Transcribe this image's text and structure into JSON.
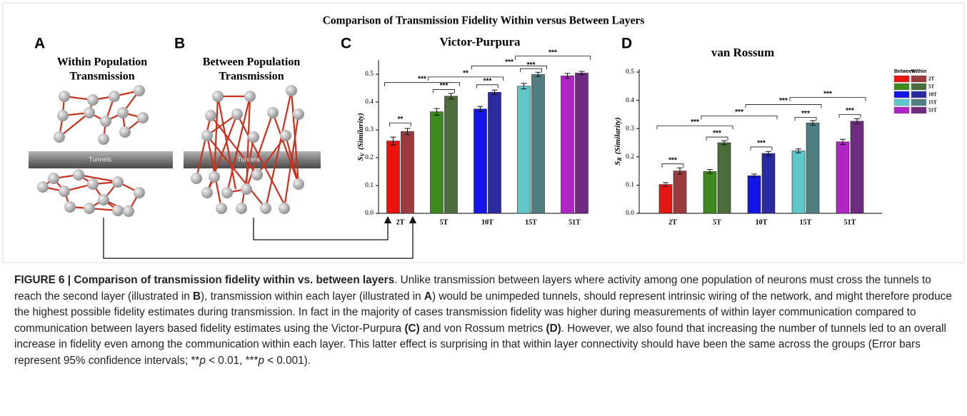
{
  "figure": {
    "title": "Comparison of Transmission Fidelity Within versus Between Layers",
    "panel_a": {
      "label": "A",
      "title": [
        "Within Population",
        "Transmission"
      ],
      "tunnel": "Tunnels"
    },
    "panel_b": {
      "label": "B",
      "title": [
        "Between Population",
        "Transmission"
      ],
      "tunnel": "Tunnels"
    },
    "panel_c": {
      "label": "C"
    },
    "panel_d": {
      "label": "D"
    }
  },
  "chart_data": [
    {
      "type": "bar",
      "title": "Victor-Purpura",
      "ylabel": {
        "symbol": "S",
        "subscript": "V",
        "text": "(Similarity)"
      },
      "categories": [
        "2T",
        "5T",
        "10T",
        "15T",
        "51T"
      ],
      "series": [
        {
          "name": "Between",
          "colors": [
            "#e8140f",
            "#3d8a1f",
            "#1414e6",
            "#5ec8c8",
            "#b026c4"
          ],
          "values": [
            0.26,
            0.365,
            0.375,
            0.457,
            0.494
          ],
          "errors": [
            0.014,
            0.012,
            0.009,
            0.01,
            0.009
          ]
        },
        {
          "name": "Within",
          "colors": [
            "#9a3b3d",
            "#4b6c3b",
            "#2b2ba0",
            "#4f7f80",
            "#6f2b80"
          ],
          "values": [
            0.294,
            0.421,
            0.435,
            0.499,
            0.504
          ],
          "errors": [
            0.011,
            0.01,
            0.008,
            0.008,
            0.006
          ]
        }
      ],
      "ylim": [
        0,
        0.55
      ],
      "yticks": [
        {
          "value": 0,
          "label": "0.0"
        },
        0.1,
        0.2,
        0.3,
        0.4,
        0.5
      ],
      "significance": [
        "**",
        "***",
        "***",
        "***",
        "***",
        "**",
        "***",
        "***"
      ]
    },
    {
      "type": "bar",
      "title": "van Rossum",
      "ylabel": {
        "symbol": "S",
        "subscript": "R",
        "text": "(Similarity)"
      },
      "categories": [
        "2T",
        "5T",
        "10T",
        "15T",
        "51T"
      ],
      "series": [
        {
          "name": "Between",
          "colors": [
            "#e8140f",
            "#3d8a1f",
            "#1414e6",
            "#5ec8c8",
            "#b026c4"
          ],
          "values": [
            0.102,
            0.148,
            0.133,
            0.221,
            0.253
          ],
          "errors": [
            0.007,
            0.007,
            0.006,
            0.007,
            0.009
          ]
        },
        {
          "name": "Within",
          "colors": [
            "#9a3b3d",
            "#4b6c3b",
            "#2b2ba0",
            "#4f7f80",
            "#6f2b80"
          ],
          "values": [
            0.15,
            0.25,
            0.212,
            0.32,
            0.326
          ],
          "errors": [
            0.011,
            0.007,
            0.007,
            0.008,
            0.009
          ]
        }
      ],
      "ylim": [
        0,
        0.51
      ],
      "yticks": [
        {
          "value": 0,
          "label": "0.0"
        },
        0.1,
        0.2,
        0.3,
        0.4,
        0.5
      ],
      "legend": true,
      "significance": [
        "***",
        "***",
        "***",
        "***",
        "***",
        "***",
        "***",
        "***",
        "***"
      ]
    }
  ],
  "caption": {
    "segments": [
      {
        "text": "FIGURE 6 | Comparison of transmission fidelity within vs. between layers",
        "style": "bold"
      },
      {
        "text": ". Unlike transmission between layers where activity among one population of neurons must cross the tunnels to reach the second layer (illustrated in "
      },
      {
        "text": "B",
        "style": "bold"
      },
      {
        "text": "), transmission within each layer (illustrated in "
      },
      {
        "text": "A",
        "style": "bold"
      },
      {
        "text": ") would be unimpeded tunnels, should represent intrinsic wiring of the network, and might therefore produce the highest possible fidelity estimates during transmission. In fact in the majority of cases transmission fidelity was higher during measurements of within layer communication compared to communication between layers based fidelity estimates using the Victor-Purpura "
      },
      {
        "text": "(C)",
        "style": "bold"
      },
      {
        "text": " and von Rossum metrics "
      },
      {
        "text": "(D)",
        "style": "bold"
      },
      {
        "text": ". However, we also found that increasing the number of tunnels led to an overall increase in fidelity even among the communication within each layer. This latter effect is surprising in that within layer connectivity should have been the same across the groups (Error bars represent 95% confidence intervals; **"
      },
      {
        "text": "p",
        "style": "italic"
      },
      {
        "text": " < 0.01, ***"
      },
      {
        "text": "p",
        "style": "italic"
      },
      {
        "text": " < 0.001)."
      }
    ]
  }
}
